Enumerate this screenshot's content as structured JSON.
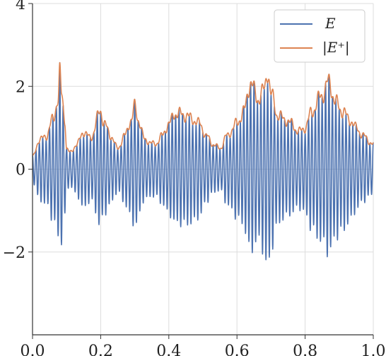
{
  "chart_data": {
    "type": "line",
    "title": "",
    "xlabel": "",
    "ylabel": "",
    "xlim": [
      0.0,
      1.0
    ],
    "ylim": [
      -4.0,
      4.0
    ],
    "grid": true,
    "legend_placement": "top-right",
    "x_ticks": [
      {
        "value": 0.0,
        "label": "0.0"
      },
      {
        "value": 0.2,
        "label": "0.2"
      },
      {
        "value": 0.4,
        "label": "0.4"
      },
      {
        "value": 0.6,
        "label": "0.6"
      },
      {
        "value": 0.8,
        "label": "0.8"
      },
      {
        "value": 1.0,
        "label": "1.0"
      }
    ],
    "y_ticks": [
      {
        "value": -2,
        "label": "−2"
      },
      {
        "value": 0,
        "label": "0"
      },
      {
        "value": 2,
        "label": "2"
      },
      {
        "value": 4,
        "label": "4"
      }
    ],
    "series": [
      {
        "name": "E",
        "color": "#4c72b0",
        "carrier_cycles": 100,
        "envelope_points": [
          [
            0.0,
            0.3
          ],
          [
            0.02,
            0.7
          ],
          [
            0.04,
            0.8
          ],
          [
            0.06,
            1.2
          ],
          [
            0.075,
            1.7
          ],
          [
            0.08,
            2.3
          ],
          [
            0.085,
            1.8
          ],
          [
            0.095,
            1.2
          ],
          [
            0.1,
            0.5
          ],
          [
            0.11,
            0.4
          ],
          [
            0.13,
            0.6
          ],
          [
            0.15,
            0.9
          ],
          [
            0.17,
            0.75
          ],
          [
            0.2,
            1.4
          ],
          [
            0.21,
            1.1
          ],
          [
            0.23,
            0.8
          ],
          [
            0.25,
            0.5
          ],
          [
            0.27,
            0.8
          ],
          [
            0.29,
            1.2
          ],
          [
            0.3,
            1.5
          ],
          [
            0.31,
            1.2
          ],
          [
            0.33,
            0.7
          ],
          [
            0.36,
            0.6
          ],
          [
            0.38,
            0.8
          ],
          [
            0.4,
            1.1
          ],
          [
            0.42,
            1.35
          ],
          [
            0.45,
            1.3
          ],
          [
            0.47,
            1.2
          ],
          [
            0.49,
            1.1
          ],
          [
            0.51,
            0.8
          ],
          [
            0.53,
            0.6
          ],
          [
            0.55,
            0.5
          ],
          [
            0.57,
            0.8
          ],
          [
            0.6,
            1.1
          ],
          [
            0.62,
            1.4
          ],
          [
            0.64,
            2.1
          ],
          [
            0.66,
            1.7
          ],
          [
            0.68,
            1.9
          ],
          [
            0.69,
            2.4
          ],
          [
            0.7,
            1.8
          ],
          [
            0.72,
            1.3
          ],
          [
            0.74,
            1.2
          ],
          [
            0.76,
            1.1
          ],
          [
            0.78,
            0.9
          ],
          [
            0.8,
            1.0
          ],
          [
            0.82,
            1.4
          ],
          [
            0.85,
            1.8
          ],
          [
            0.87,
            2.1
          ],
          [
            0.89,
            1.6
          ],
          [
            0.91,
            1.4
          ],
          [
            0.93,
            1.2
          ],
          [
            0.95,
            1.0
          ],
          [
            0.97,
            0.8
          ],
          [
            1.0,
            0.6
          ]
        ]
      },
      {
        "name": "|E⁺|",
        "color": "#dd8452"
      }
    ]
  }
}
